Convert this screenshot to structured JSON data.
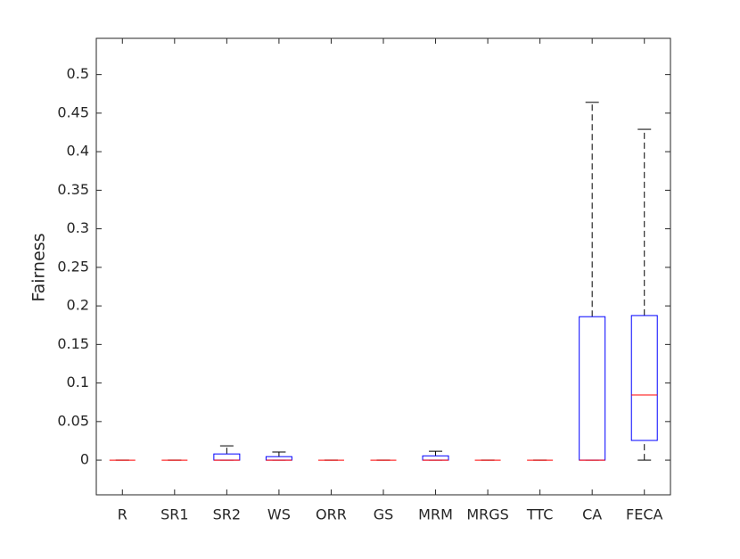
{
  "chart_data": {
    "type": "box",
    "y_label": "Fairness",
    "categories": [
      "R",
      "SR1",
      "SR2",
      "WS",
      "ORR",
      "GS",
      "MRM",
      "MRGS",
      "TTC",
      "CA",
      "FECA"
    ],
    "whisker_low": [
      0,
      0,
      0,
      0,
      0,
      0,
      0,
      0,
      0,
      0,
      0
    ],
    "q1": [
      0,
      0,
      0,
      0,
      0,
      0,
      0,
      0,
      0,
      0,
      0.0255
    ],
    "median": [
      0,
      0,
      0,
      0,
      0,
      0,
      0,
      0,
      0,
      0,
      0.0845
    ],
    "q3": [
      0,
      0,
      0.008,
      0.0045,
      0,
      0,
      0.0055,
      0,
      0,
      0.186,
      0.1875
    ],
    "whisker_high": [
      0,
      0,
      0.0185,
      0.0105,
      0,
      0,
      0.0115,
      0,
      0,
      0.464,
      0.429
    ],
    "box_color": "#0000ff",
    "median_color": "#ff0000",
    "whisker_color": "#000000",
    "ylim": [
      -0.045,
      0.547
    ],
    "yticks": [
      0,
      0.05,
      0.1,
      0.15,
      0.2,
      0.25,
      0.3,
      0.35,
      0.4,
      0.45,
      0.5
    ]
  }
}
